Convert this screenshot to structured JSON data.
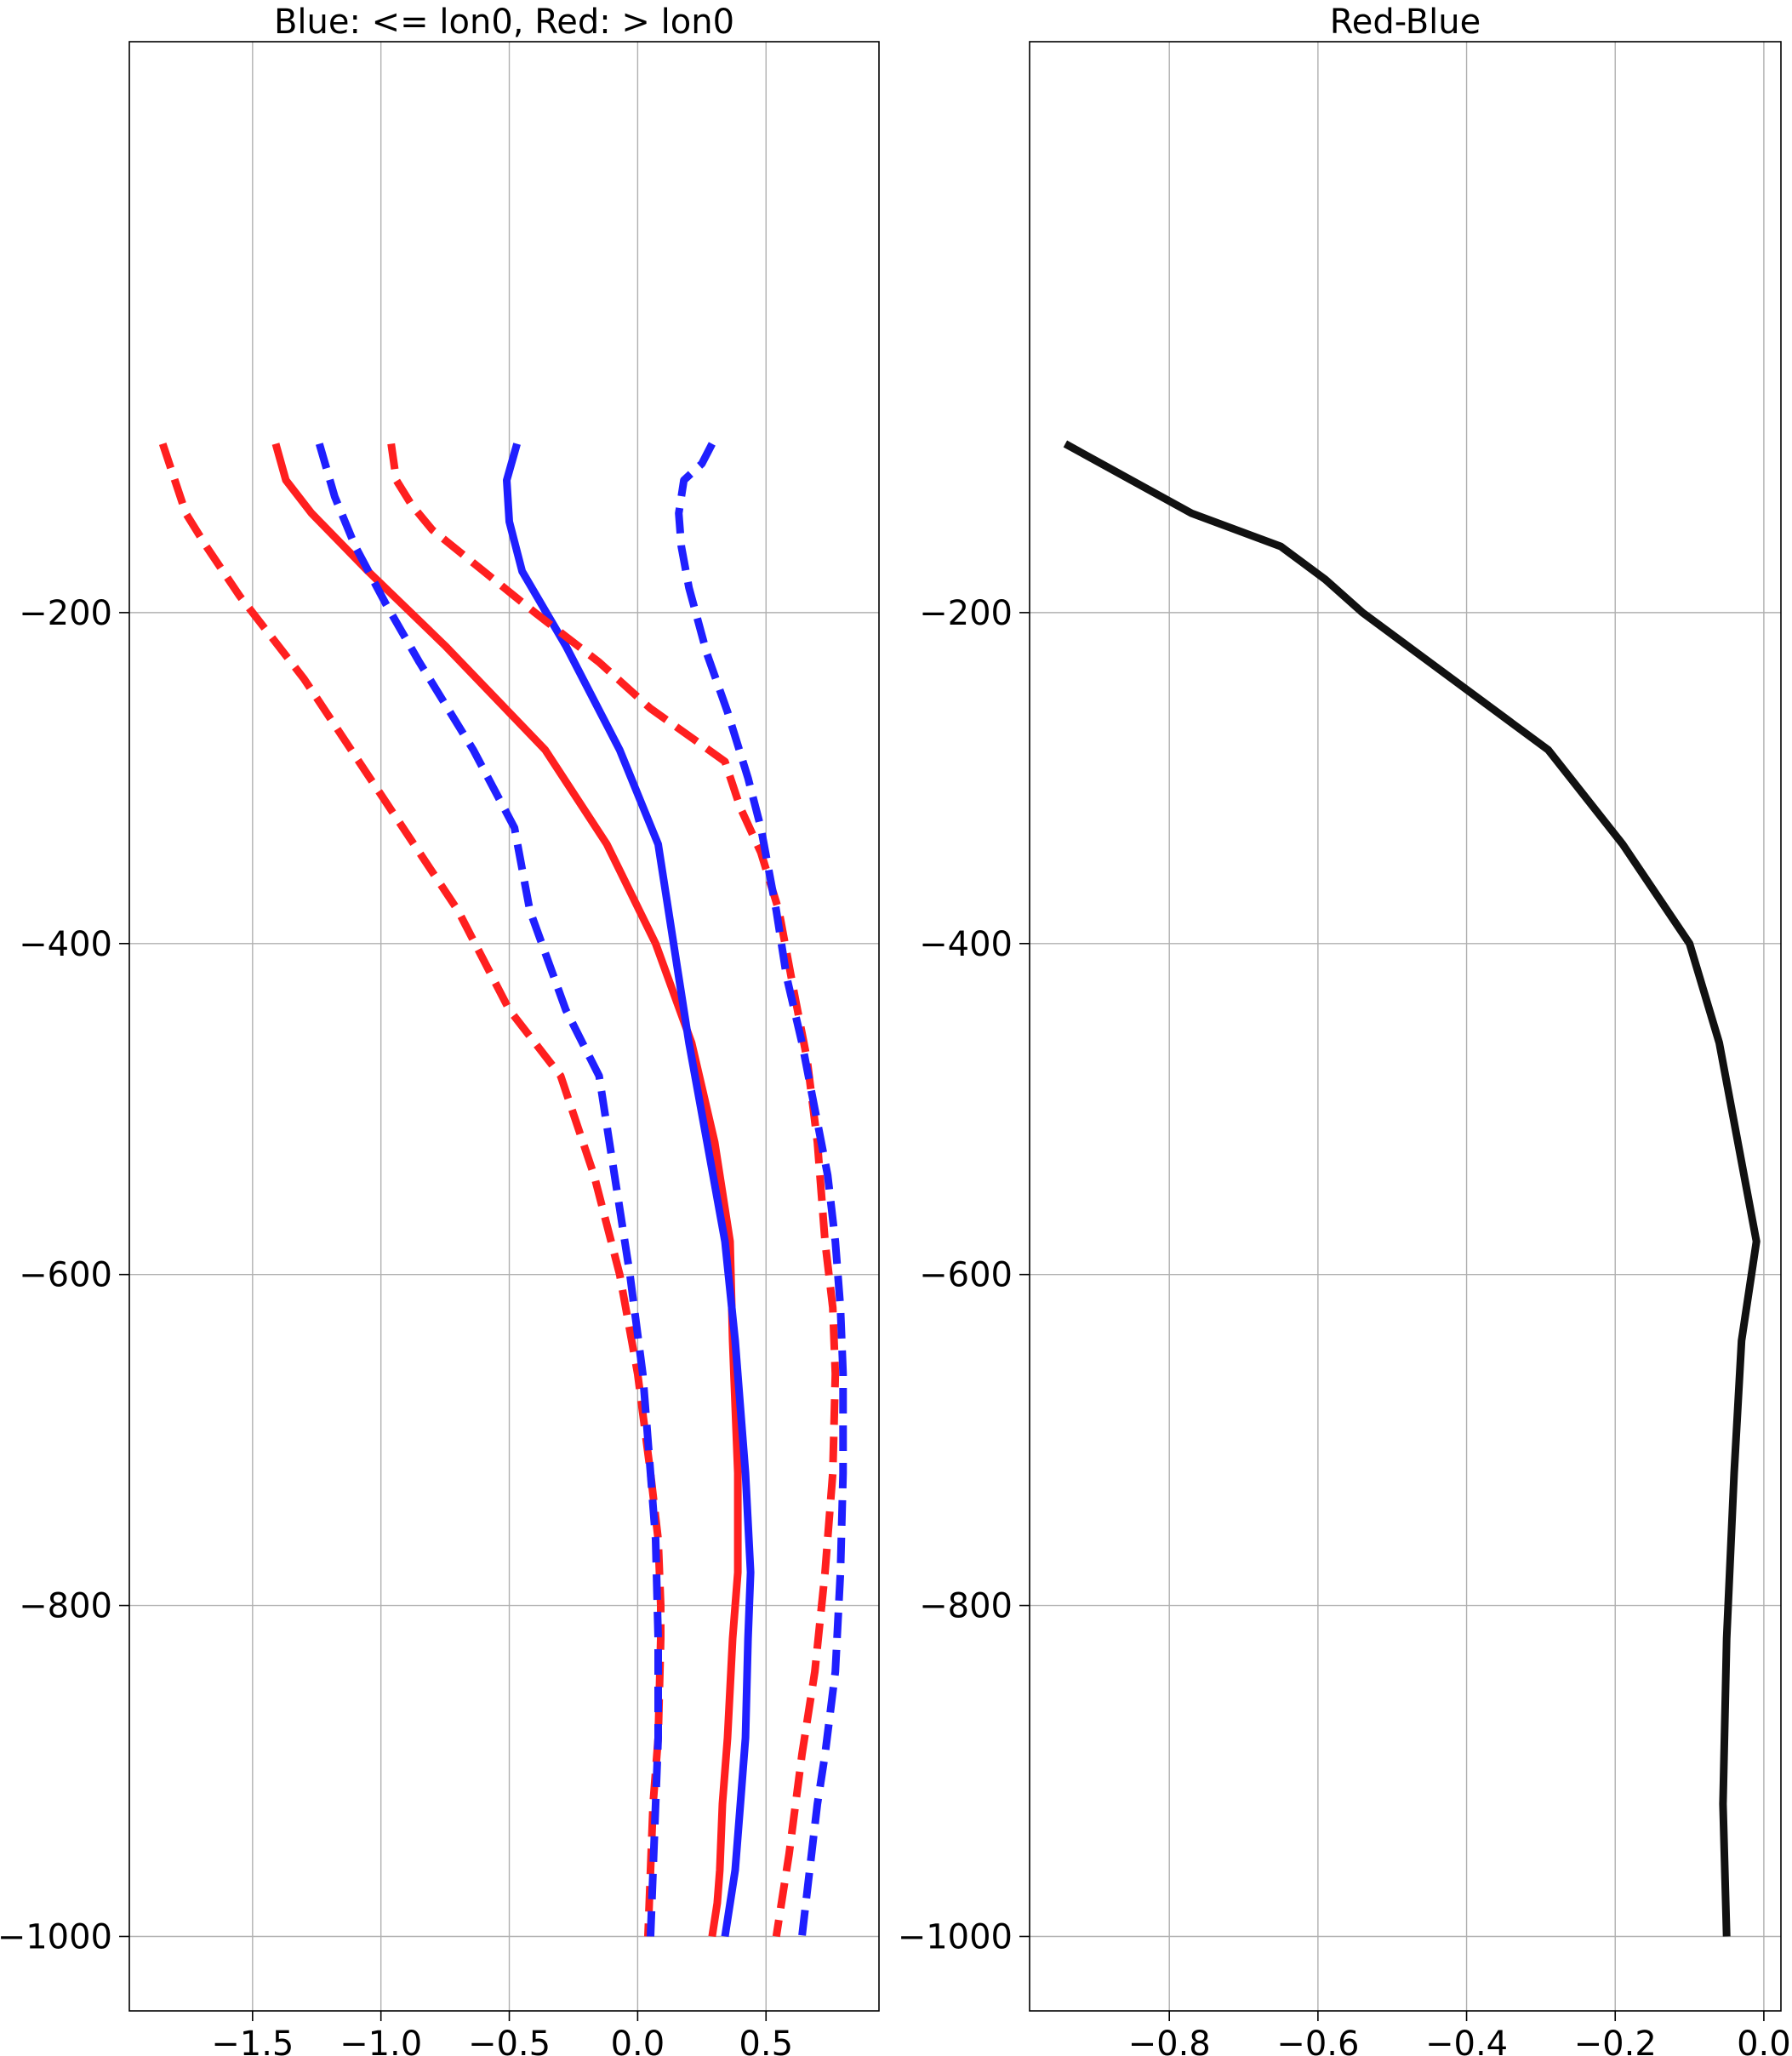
{
  "colors": {
    "blue": "#1f1fff",
    "red": "#ff1f1f",
    "black": "#111111"
  },
  "chart_data": [
    {
      "type": "line",
      "title": "Blue: <= lon0, Red: > lon0",
      "xlabel": "",
      "ylabel": "",
      "xlim": [
        -1.98,
        0.94
      ],
      "ylim": [
        -1045,
        145
      ],
      "xticks": [
        -1.5,
        -1.0,
        -0.5,
        0.0,
        0.5
      ],
      "xtick_labels": [
        "−1.5",
        "−1.0",
        "−0.5",
        "0.0",
        "0.5"
      ],
      "yticks": [
        -200,
        -400,
        -600,
        -800,
        -1000
      ],
      "ytick_labels": [
        "−200",
        "−400",
        "−600",
        "−800",
        "−1000"
      ],
      "grid": true,
      "series": [
        {
          "color": "red",
          "style": "dashed",
          "x": [
            -1.85,
            -1.76,
            -1.68,
            -1.55,
            -1.3,
            -1.0,
            -0.7,
            -0.5,
            -0.3,
            -0.17,
            -0.07,
            0.0,
            0.05,
            0.08,
            0.09,
            0.09,
            0.08,
            0.06,
            0.05,
            0.04
          ],
          "y": [
            -98,
            -140,
            -160,
            -190,
            -240,
            -310,
            -380,
            -440,
            -480,
            -540,
            -600,
            -660,
            -720,
            -760,
            -800,
            -820,
            -880,
            -920,
            -960,
            -1000
          ]
        },
        {
          "color": "red",
          "style": "solid",
          "x": [
            -1.41,
            -1.37,
            -1.27,
            -1.05,
            -0.75,
            -0.36,
            -0.12,
            0.07,
            0.21,
            0.3,
            0.36,
            0.37,
            0.39,
            0.39,
            0.37,
            0.35,
            0.33,
            0.32,
            0.31,
            0.29
          ],
          "y": [
            -98,
            -120,
            -140,
            -175,
            -220,
            -283,
            -340,
            -400,
            -460,
            -520,
            -580,
            -640,
            -720,
            -780,
            -820,
            -880,
            -920,
            -960,
            -980,
            -1000
          ]
        },
        {
          "color": "blue",
          "style": "dashed",
          "x": [
            -1.24,
            -1.18,
            -1.1,
            -0.98,
            -0.85,
            -0.64,
            -0.48,
            -0.42,
            -0.28,
            -0.15,
            -0.09,
            -0.03,
            0.02,
            0.05,
            0.07,
            0.08,
            0.08,
            0.07,
            0.06,
            0.05
          ],
          "y": [
            -98,
            -130,
            -160,
            -195,
            -230,
            -283,
            -330,
            -380,
            -440,
            -480,
            -540,
            -600,
            -660,
            -720,
            -760,
            -820,
            -880,
            -920,
            -960,
            -1000
          ]
        },
        {
          "color": "blue",
          "style": "solid",
          "x": [
            -0.47,
            -0.51,
            -0.5,
            -0.45,
            -0.28,
            -0.07,
            0.08,
            0.14,
            0.2,
            0.27,
            0.34,
            0.38,
            0.42,
            0.44,
            0.43,
            0.42,
            0.4,
            0.38,
            0.36,
            0.34
          ],
          "y": [
            -98,
            -120,
            -145,
            -175,
            -220,
            -283,
            -340,
            -400,
            -460,
            -520,
            -580,
            -640,
            -720,
            -780,
            -820,
            -880,
            -920,
            -960,
            -980,
            -1000
          ]
        },
        {
          "color": "red",
          "style": "dashed",
          "x": [
            -0.96,
            -0.94,
            -0.88,
            -0.8,
            -0.6,
            -0.4,
            -0.15,
            0.05,
            0.25,
            0.34,
            0.4,
            0.48,
            0.55,
            0.61,
            0.66,
            0.7,
            0.73,
            0.76,
            0.77,
            0.76,
            0.73,
            0.69,
            0.64,
            0.59,
            0.54
          ],
          "y": [
            -98,
            -120,
            -135,
            -150,
            -175,
            -200,
            -230,
            -258,
            -280,
            -290,
            -318,
            -345,
            -380,
            -430,
            -470,
            -520,
            -580,
            -620,
            -660,
            -720,
            -780,
            -840,
            -890,
            -950,
            -1000
          ]
        },
        {
          "color": "blue",
          "style": "dashed",
          "x": [
            0.29,
            0.25,
            0.18,
            0.16,
            0.17,
            0.2,
            0.27,
            0.35,
            0.43,
            0.48,
            0.54,
            0.58,
            0.64,
            0.69,
            0.74,
            0.77,
            0.79,
            0.8,
            0.8,
            0.79,
            0.77,
            0.73,
            0.7,
            0.67,
            0.64
          ],
          "y": [
            -98,
            -110,
            -120,
            -140,
            -160,
            -185,
            -225,
            -260,
            -300,
            -330,
            -380,
            -420,
            -460,
            -500,
            -540,
            -580,
            -620,
            -660,
            -720,
            -780,
            -840,
            -890,
            -920,
            -960,
            -1000
          ]
        }
      ]
    },
    {
      "type": "line",
      "title": "Red-Blue",
      "xlabel": "",
      "ylabel": "",
      "xlim": [
        -0.988,
        0.023
      ],
      "ylim": [
        -1045,
        145
      ],
      "xticks": [
        -0.8,
        -0.6,
        -0.4,
        -0.2,
        0.0
      ],
      "xtick_labels": [
        "−0.8",
        "−0.6",
        "−0.4",
        "−0.2",
        "0.0"
      ],
      "yticks": [
        -200,
        -400,
        -600,
        -800,
        -1000
      ],
      "ytick_labels": [
        "−200",
        "−400",
        "−600",
        "−800",
        "−1000"
      ],
      "grid": true,
      "series": [
        {
          "color": "black",
          "style": "solid",
          "x": [
            -0.94,
            -0.77,
            -0.65,
            -0.59,
            -0.54,
            -0.29,
            -0.19,
            -0.1,
            -0.06,
            -0.01,
            -0.03,
            -0.04,
            -0.05,
            -0.055,
            -0.05
          ],
          "y": [
            -98,
            -140,
            -160,
            -180,
            -200,
            -283,
            -340,
            -400,
            -460,
            -580,
            -640,
            -720,
            -820,
            -920,
            -1000
          ]
        }
      ]
    }
  ]
}
